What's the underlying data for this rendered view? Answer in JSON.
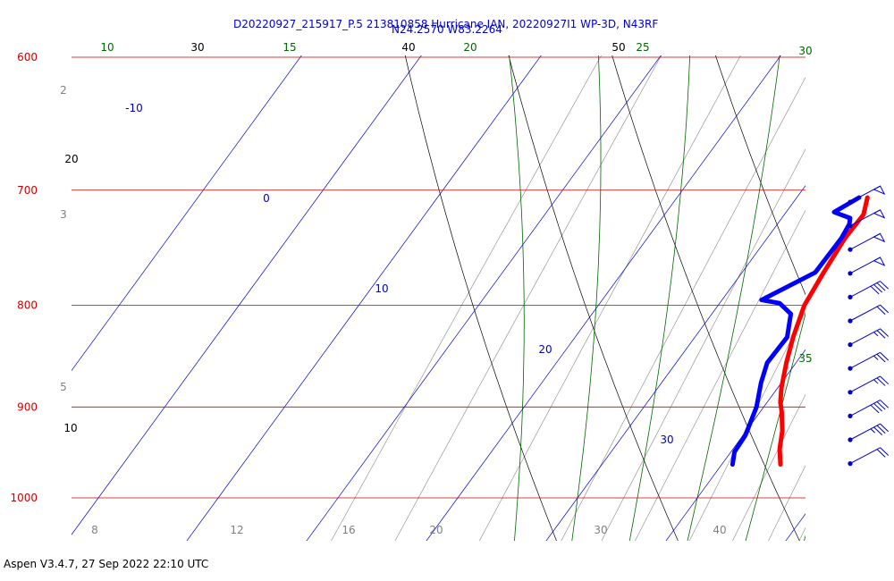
{
  "title_line1": "D20220927_215917_P.5 213810858 Hurricane IAN, 20220927I1 WP-3D, N43RF",
  "title_line2": "N24.2570 W83.2264",
  "footer": "Aspen V3.4.7, 27 Sep 2022  22:10 UTC",
  "colors": {
    "isobar": "#cc0000",
    "dry_adiabat": "#000000",
    "moist_adiabat": "#006600",
    "isotherm": "#0000cc",
    "mixing_ratio": "#888888",
    "temperature": "#ff0000",
    "dewpoint": "#0000ff",
    "wind_barb": "#0000cc"
  },
  "chart_data": {
    "type": "line",
    "diagram": "skew-T",
    "y_axis": "pressure (hPa), log scale",
    "ylim": [
      1030,
      600
    ],
    "isobars": [
      600,
      700,
      800,
      900,
      1000
    ],
    "isotherm_labels": [
      "-10",
      "0",
      "10",
      "20",
      "30"
    ],
    "dry_adiabat_labels": [
      "10",
      "20",
      "30",
      "40",
      "50"
    ],
    "moist_adiabat_labels": [
      "10",
      "15",
      "20",
      "25",
      "30",
      "35"
    ],
    "mixing_ratio_side_labels": [
      "2",
      "3",
      "5"
    ],
    "mixing_ratio_bottom_labels": [
      "8",
      "12",
      "16",
      "20",
      "30",
      "40"
    ],
    "series": [
      {
        "name": "temperature",
        "p": [
          706,
          720,
          740,
          770,
          800,
          830,
          855,
          880,
          895,
          905,
          925,
          945,
          962
        ],
        "t": [
          15.9,
          16.6,
          16.5,
          16.8,
          17.2,
          18.2,
          19.2,
          20.3,
          21.1,
          21.8,
          23.0,
          23.9,
          24.9
        ]
      },
      {
        "name": "dewpoint",
        "p": [
          706,
          718,
          723,
          728,
          740,
          770,
          795,
          798,
          808,
          830,
          855,
          875,
          900,
          930,
          948,
          962
        ],
        "t": [
          15.2,
          14.0,
          15.7,
          16.0,
          16.2,
          16.1,
          13.3,
          15.0,
          16.6,
          17.7,
          17.6,
          18.3,
          19.4,
          20.2,
          20.3,
          20.9
        ]
      }
    ],
    "wind_barbs": [
      {
        "p": 710,
        "speed_kt": 50
      },
      {
        "p": 730,
        "speed_kt": 50
      },
      {
        "p": 750,
        "speed_kt": 50
      },
      {
        "p": 770,
        "speed_kt": 50
      },
      {
        "p": 790,
        "speed_kt": 40
      },
      {
        "p": 810,
        "speed_kt": 20
      },
      {
        "p": 830,
        "speed_kt": 25
      },
      {
        "p": 850,
        "speed_kt": 25
      },
      {
        "p": 870,
        "speed_kt": 25
      },
      {
        "p": 895,
        "speed_kt": 40
      },
      {
        "p": 925,
        "speed_kt": 35
      },
      {
        "p": 950,
        "speed_kt": 20
      }
    ]
  }
}
